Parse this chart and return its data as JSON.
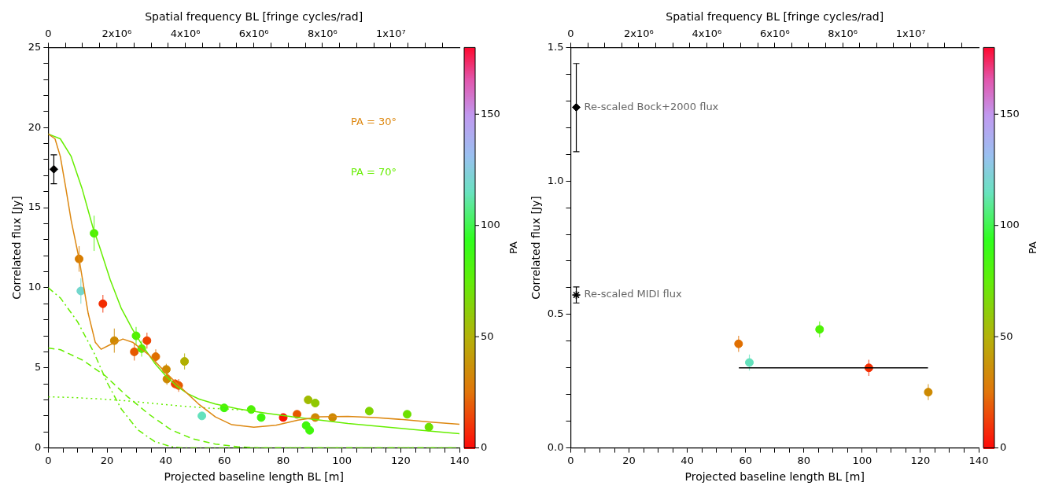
{
  "chart_data": [
    {
      "type": "scatter",
      "xlabel": "Projected baseline length BL [m]",
      "ylabel": "Correlated flux [Jy]",
      "x2label": "Spatial frequency BL [fringe cycles/rad]",
      "clabel": "PA",
      "grid": false,
      "legend": "top right",
      "xlim": [
        0,
        140
      ],
      "ylim": [
        0,
        25
      ],
      "x2lim": [
        0,
        12000000
      ],
      "clim": [
        0,
        180
      ],
      "cticks": [
        0,
        50,
        100,
        150
      ],
      "xticks": [
        0,
        {
          "value": 5,
          "label": null
        },
        {
          "value": 10,
          "label": null
        },
        {
          "value": 15,
          "label": null
        },
        20,
        {
          "value": 25,
          "label": null
        },
        {
          "value": 30,
          "label": null
        },
        {
          "value": 35,
          "label": null
        },
        40,
        {
          "value": 45,
          "label": null
        },
        {
          "value": 50,
          "label": null
        },
        {
          "value": 55,
          "label": null
        },
        60,
        {
          "value": 65,
          "label": null
        },
        {
          "value": 70,
          "label": null
        },
        {
          "value": 75,
          "label": null
        },
        80,
        {
          "value": 85,
          "label": null
        },
        {
          "value": 90,
          "label": null
        },
        {
          "value": 95,
          "label": null
        },
        100,
        {
          "value": 105,
          "label": null
        },
        {
          "value": 110,
          "label": null
        },
        {
          "value": 115,
          "label": null
        },
        120,
        {
          "value": 125,
          "label": null
        },
        {
          "value": 130,
          "label": null
        },
        {
          "value": 135,
          "label": null
        },
        140
      ],
      "yticks": [
        0,
        {
          "value": 1,
          "label": null
        },
        {
          "value": 2,
          "label": null
        },
        {
          "value": 3,
          "label": null
        },
        {
          "value": 4,
          "label": null
        },
        5,
        {
          "value": 6,
          "label": null
        },
        {
          "value": 7,
          "label": null
        },
        {
          "value": 8,
          "label": null
        },
        {
          "value": 9,
          "label": null
        },
        10,
        {
          "value": 11,
          "label": null
        },
        {
          "value": 12,
          "label": null
        },
        {
          "value": 13,
          "label": null
        },
        {
          "value": 14,
          "label": null
        },
        15,
        {
          "value": 16,
          "label": null
        },
        {
          "value": 17,
          "label": null
        },
        {
          "value": 18,
          "label": null
        },
        {
          "value": 19,
          "label": null
        },
        20,
        {
          "value": 21,
          "label": null
        },
        {
          "value": 22,
          "label": null
        },
        {
          "value": 23,
          "label": null
        },
        {
          "value": 24,
          "label": null
        },
        25
      ],
      "x2ticks": [
        0,
        {
          "value": 500000,
          "label": null
        },
        {
          "value": 1000000,
          "label": null
        },
        {
          "value": 1500000,
          "label": null
        },
        {
          "value": 2000000,
          "label": "2x10⁶"
        },
        {
          "value": 2500000,
          "label": null
        },
        {
          "value": 3000000,
          "label": null
        },
        {
          "value": 3500000,
          "label": null
        },
        {
          "value": 4000000,
          "label": "4x10⁶"
        },
        {
          "value": 4500000,
          "label": null
        },
        {
          "value": 5000000,
          "label": null
        },
        {
          "value": 5500000,
          "label": null
        },
        {
          "value": 6000000,
          "label": "6x10⁶"
        },
        {
          "value": 6500000,
          "label": null
        },
        {
          "value": 7000000,
          "label": null
        },
        {
          "value": 7500000,
          "label": null
        },
        {
          "value": 8000000,
          "label": "8x10⁶"
        },
        {
          "value": 8500000,
          "label": null
        },
        {
          "value": 9000000,
          "label": null
        },
        {
          "value": 9500000,
          "label": null
        },
        {
          "value": 10000000,
          "label": "1x10⁷"
        },
        {
          "value": 10500000,
          "label": null
        },
        {
          "value": 11000000,
          "label": null
        },
        {
          "value": 11500000,
          "label": null
        }
      ],
      "series": [
        {
          "type": "line",
          "name": "PA = 30°",
          "color": "#dd8811",
          "x": [
            0,
            2.3,
            4.1,
            6.0,
            7.8,
            10.5,
            13.6,
            16.0,
            18.0,
            21.1,
            25.4,
            28.7,
            34.3,
            40,
            45.6,
            51.2,
            56.9,
            62.5,
            70,
            77.5,
            85,
            92.6,
            102,
            111.4,
            120.8,
            130.2,
            140
          ],
          "values": [
            19.6,
            19.3,
            18.2,
            16.2,
            14.2,
            11.8,
            8.4,
            6.6,
            6.16,
            6.45,
            6.8,
            6.6,
            5.8,
            4.7,
            3.7,
            2.74,
            1.94,
            1.45,
            1.29,
            1.42,
            1.74,
            1.94,
            1.97,
            1.9,
            1.77,
            1.61,
            1.48
          ]
        },
        {
          "type": "line",
          "name": "PA = 70°",
          "color": "#66ee00",
          "x": [
            0,
            4.1,
            7.8,
            11.5,
            15.3,
            17.4,
            21.1,
            24.9,
            28.7,
            32.4,
            36.2,
            40,
            43.7,
            47.5,
            51.2,
            56.9,
            64.4,
            73.8,
            83.2,
            92.6,
            102,
            111.4,
            120.8,
            130.2,
            140
          ],
          "values": [
            19.6,
            19.3,
            18.2,
            16.2,
            13.7,
            12.6,
            10.5,
            8.7,
            7.4,
            6.3,
            5.3,
            4.5,
            3.87,
            3.39,
            3.06,
            2.74,
            2.45,
            2.18,
            1.94,
            1.74,
            1.53,
            1.37,
            1.21,
            1.05,
            0.89
          ]
        },
        {
          "type": "line",
          "color": "#66ee00",
          "line_style": "dashdot",
          "x": [
            0,
            4.2,
            9.9,
            15.5,
            20.2,
            24.9,
            30.5,
            36.2,
            41.8,
            45.6,
            140
          ],
          "values": [
            10,
            9.35,
            7.9,
            5.97,
            4.03,
            2.42,
            1.13,
            0.4,
            0.08,
            0,
            0
          ]
        },
        {
          "type": "line",
          "color": "#66ee00",
          "line_style": "dashed",
          "x": [
            0,
            4.2,
            11.7,
            19.3,
            26.8,
            34.3,
            41.8,
            49.3,
            56.9,
            64.4,
            71.9,
            140
          ],
          "values": [
            6.24,
            6.13,
            5.48,
            4.52,
            3.23,
            2.1,
            1.13,
            0.56,
            0.24,
            0.08,
            0,
            0
          ]
        },
        {
          "type": "line",
          "color": "#66ee00",
          "line_style": "dotted",
          "x": [
            0,
            8,
            17.4,
            26.8,
            36.2,
            45.6,
            55,
            64.4,
            70
          ],
          "values": [
            3.19,
            3.15,
            3.06,
            2.94,
            2.77,
            2.61,
            2.48,
            2.39,
            2.33
          ]
        },
        {
          "type": "scatter",
          "marker": "diamond",
          "color": "#000000",
          "x": [
            1.9
          ],
          "values": [
            17.4
          ],
          "errors": [
            0.9
          ]
        },
        {
          "type": "scatter",
          "marker": "circle",
          "x": [
            10.5,
            11.1,
            15.6,
            18.6,
            22.5,
            29.3,
            29.9,
            31.8,
            33.6,
            36.6,
            40.2,
            40.4,
            43.2,
            44.4,
            46.4,
            52.3,
            59.9,
            69.1,
            72.5,
            80.0,
            84.7,
            87.8,
            88.5,
            89.0,
            90.9,
            90.9,
            96.8,
            109.3,
            122.2,
            129.6
          ],
          "values": [
            11.8,
            9.8,
            13.4,
            9.0,
            6.7,
            6.0,
            7.0,
            6.2,
            6.7,
            5.7,
            4.9,
            4.3,
            4.0,
            3.9,
            5.4,
            2.0,
            2.5,
            2.4,
            1.9,
            1.9,
            2.1,
            1.4,
            3.0,
            1.1,
            2.8,
            1.9,
            1.9,
            2.3,
            2.1,
            1.3
          ],
          "cvalues": [
            30,
            120,
            80,
            10,
            35,
            20,
            80,
            75,
            15,
            25,
            35,
            35,
            15,
            20,
            50,
            115,
            85,
            80,
            85,
            5,
            20,
            85,
            55,
            85,
            60,
            35,
            35,
            65,
            70,
            70
          ],
          "colors": [
            "#d77c00",
            "#73d7cd",
            "#4ef205",
            "#f32c00",
            "#cd8900",
            "#e65900",
            "#4ef205",
            "#5cec00",
            "#ed4300",
            "#e06f00",
            "#cd8900",
            "#cd8900",
            "#ed4300",
            "#e65900",
            "#b1af00",
            "#63e1bc",
            "#40f70a",
            "#4ef205",
            "#40f70a",
            "#f91600",
            "#e65900",
            "#40f70a",
            "#a0bb00",
            "#40f70a",
            "#8fc800",
            "#cd8900",
            "#cd8900",
            "#7ed400",
            "#6de000",
            "#6de000"
          ],
          "errors": [
            0.8,
            0.8,
            1.1,
            0.55,
            0.75,
            0.55,
            0.55,
            0.5,
            0.5,
            0.45,
            0.35,
            0.35,
            0.3,
            0.4,
            0.5,
            null,
            null,
            null,
            null,
            null,
            null,
            null,
            null,
            null,
            null,
            null,
            null,
            null,
            null,
            null
          ]
        }
      ]
    },
    {
      "type": "scatter",
      "xlabel": "Projected baseline length BL [m]",
      "ylabel": "Correlated flux [Jy]",
      "x2label": "Spatial frequency BL [fringe cycles/rad]",
      "clabel": "PA",
      "grid": false,
      "xlim": [
        0,
        140
      ],
      "ylim": [
        0,
        1.5
      ],
      "x2lim": [
        0,
        12000000
      ],
      "clim": [
        0,
        180
      ],
      "cticks": [
        0,
        50,
        100,
        150
      ],
      "xticks": [
        0,
        {
          "value": 5,
          "label": null
        },
        {
          "value": 10,
          "label": null
        },
        {
          "value": 15,
          "label": null
        },
        20,
        {
          "value": 25,
          "label": null
        },
        {
          "value": 30,
          "label": null
        },
        {
          "value": 35,
          "label": null
        },
        40,
        {
          "value": 45,
          "label": null
        },
        {
          "value": 50,
          "label": null
        },
        {
          "value": 55,
          "label": null
        },
        60,
        {
          "value": 65,
          "label": null
        },
        {
          "value": 70,
          "label": null
        },
        {
          "value": 75,
          "label": null
        },
        80,
        {
          "value": 85,
          "label": null
        },
        {
          "value": 90,
          "label": null
        },
        {
          "value": 95,
          "label": null
        },
        100,
        {
          "value": 105,
          "label": null
        },
        {
          "value": 110,
          "label": null
        },
        {
          "value": 115,
          "label": null
        },
        120,
        {
          "value": 125,
          "label": null
        },
        {
          "value": 130,
          "label": null
        },
        {
          "value": 135,
          "label": null
        },
        140
      ],
      "yticks": [
        {
          "value": 0,
          "label": "0.0"
        },
        {
          "value": 0.1,
          "label": null
        },
        {
          "value": 0.2,
          "label": null
        },
        {
          "value": 0.3,
          "label": null
        },
        {
          "value": 0.4,
          "label": null
        },
        0.5,
        {
          "value": 0.6,
          "label": null
        },
        {
          "value": 0.7,
          "label": null
        },
        {
          "value": 0.8,
          "label": null
        },
        {
          "value": 0.9,
          "label": null
        },
        {
          "value": 1,
          "label": "1.0"
        },
        {
          "value": 1.1,
          "label": null
        },
        {
          "value": 1.2,
          "label": null
        },
        {
          "value": 1.3,
          "label": null
        },
        {
          "value": 1.4,
          "label": null
        },
        1.5
      ],
      "x2ticks": [
        0,
        {
          "value": 500000,
          "label": null
        },
        {
          "value": 1000000,
          "label": null
        },
        {
          "value": 1500000,
          "label": null
        },
        {
          "value": 2000000,
          "label": "2x10⁶"
        },
        {
          "value": 2500000,
          "label": null
        },
        {
          "value": 3000000,
          "label": null
        },
        {
          "value": 3500000,
          "label": null
        },
        {
          "value": 4000000,
          "label": "4x10⁶"
        },
        {
          "value": 4500000,
          "label": null
        },
        {
          "value": 5000000,
          "label": null
        },
        {
          "value": 5500000,
          "label": null
        },
        {
          "value": 6000000,
          "label": "6x10⁶"
        },
        {
          "value": 6500000,
          "label": null
        },
        {
          "value": 7000000,
          "label": null
        },
        {
          "value": 7500000,
          "label": null
        },
        {
          "value": 8000000,
          "label": "8x10⁶"
        },
        {
          "value": 8500000,
          "label": null
        },
        {
          "value": 9000000,
          "label": null
        },
        {
          "value": 9500000,
          "label": null
        },
        {
          "value": 10000000,
          "label": "1x10⁷"
        },
        {
          "value": 10500000,
          "label": null
        },
        {
          "value": 11000000,
          "label": null
        },
        {
          "value": 11500000,
          "label": null
        }
      ],
      "annotations": [
        {
          "text": "Re-scaled Bock+2000 flux",
          "x": 1.9,
          "y": 1.276
        },
        {
          "text": "Re-scaled MIDI flux",
          "x": 1.9,
          "y": 0.573
        }
      ],
      "series": [
        {
          "type": "scatter",
          "marker": "diamond",
          "color": "#000000",
          "x": [
            1.9
          ],
          "values": [
            1.276
          ],
          "errors": [
            [
              1.11,
              1.44
            ]
          ]
        },
        {
          "type": "scatter",
          "marker": "cross",
          "color": "#000000",
          "x": [
            1.9
          ],
          "values": [
            0.573
          ],
          "errors": [
            0.03
          ]
        },
        {
          "type": "line",
          "color": "#000000",
          "x": [
            57.7,
            122.6
          ],
          "values": [
            0.3,
            0.3
          ]
        },
        {
          "type": "scatter",
          "marker": "circle",
          "x": [
            57.6,
            61.3,
            85.4,
            102.3,
            122.7
          ],
          "values": [
            0.39,
            0.32,
            0.444,
            0.3,
            0.209
          ],
          "cvalues": [
            25,
            115,
            80,
            10,
            35
          ],
          "colors": [
            "#e06f00",
            "#63e1bc",
            "#4ef205",
            "#f32c00",
            "#cd8900"
          ],
          "errors": [
            0.03,
            0.03,
            0.03,
            0.03,
            0.03
          ]
        }
      ]
    }
  ]
}
